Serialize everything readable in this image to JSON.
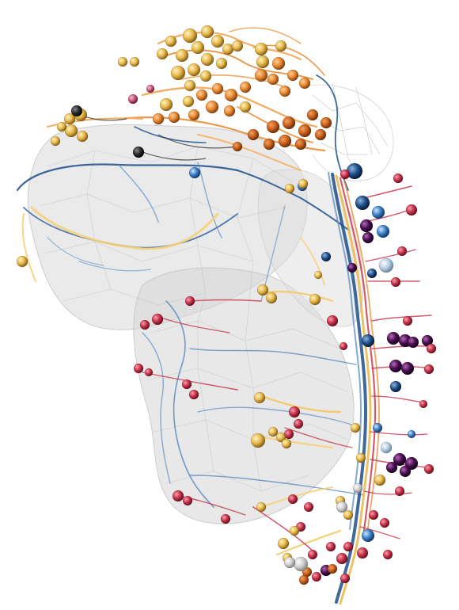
{
  "scene": {
    "kind": "3d-neuron-reconstruction-render",
    "background": "#ffffff",
    "tissue_color": "#d9d9d9",
    "palette": {
      "gold": "#e8b84a",
      "light_gold": "#f5d27a",
      "orange": "#e8892e",
      "dark_orange": "#c9621c",
      "navy": "#1f4f8a",
      "steel_blue": "#5b8ec2",
      "pale_blue": "#a9c7de",
      "crimson": "#c8324a",
      "pink": "#d9577a",
      "purple": "#4a0f4f",
      "dark_purple": "#2a0a3a",
      "charcoal": "#2b2b2b"
    }
  }
}
